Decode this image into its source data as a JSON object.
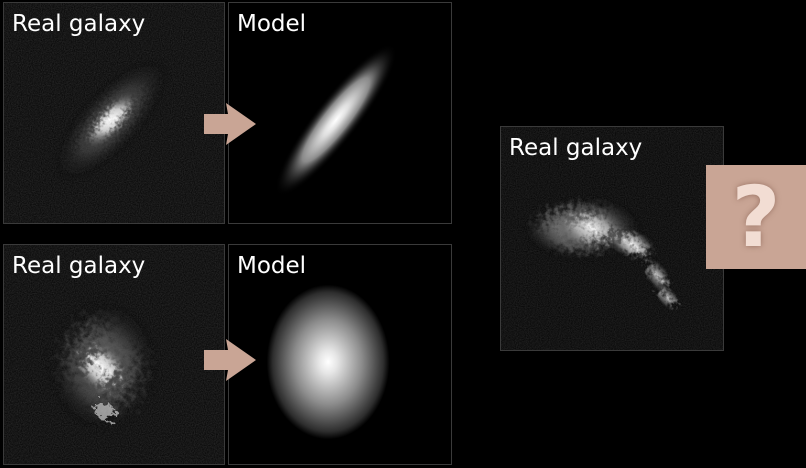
{
  "panels": {
    "top_real": {
      "label": "Real galaxy"
    },
    "top_model": {
      "label": "Model"
    },
    "bottom_real": {
      "label": "Real galaxy"
    },
    "bottom_model": {
      "label": "Model"
    },
    "right_real": {
      "label": "Real galaxy"
    }
  },
  "question_box": {
    "symbol": "?"
  },
  "colors": {
    "background": "#000000",
    "arrow": "#c9a595",
    "question_box": "#c9a595",
    "question_mark": "#f2ddd3",
    "text": "#ffffff"
  }
}
